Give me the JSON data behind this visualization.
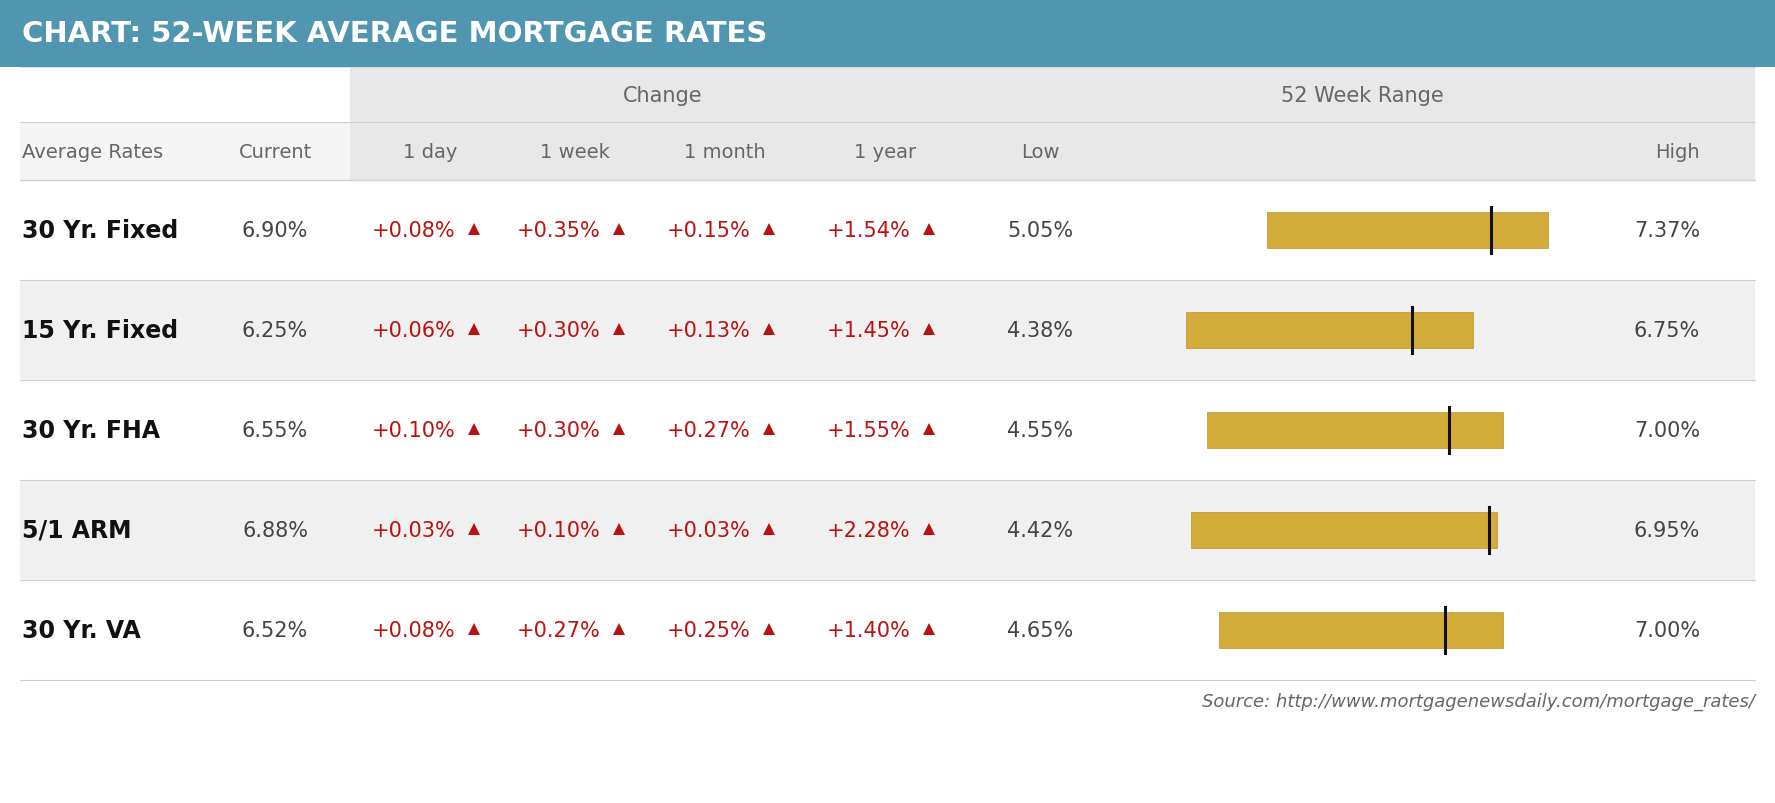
{
  "title": "CHART: 52-WEEK AVERAGE MORTGAGE RATES",
  "title_bg": "#5096b0",
  "title_color": "#ffffff",
  "source": "Source: http://www.mortgagenewsdaily.com/mortgage_rates/",
  "rows": [
    {
      "label": "30 Yr. Fixed",
      "current": "6.90%",
      "day": "+0.08%",
      "week": "+0.35%",
      "month": "+0.15%",
      "year": "+1.54%",
      "low": "5.05%",
      "low_val": 5.05,
      "high": "7.37%",
      "high_val": 7.37,
      "current_val": 6.9
    },
    {
      "label": "15 Yr. Fixed",
      "current": "6.25%",
      "day": "+0.06%",
      "week": "+0.30%",
      "month": "+0.13%",
      "year": "+1.45%",
      "low": "4.38%",
      "low_val": 4.38,
      "high": "6.75%",
      "high_val": 6.75,
      "current_val": 6.25
    },
    {
      "label": "30 Yr. FHA",
      "current": "6.55%",
      "day": "+0.10%",
      "week": "+0.30%",
      "month": "+0.27%",
      "year": "+1.55%",
      "low": "4.55%",
      "low_val": 4.55,
      "high": "7.00%",
      "high_val": 7.0,
      "current_val": 6.55
    },
    {
      "label": "5/1 ARM",
      "current": "6.88%",
      "day": "+0.03%",
      "week": "+0.10%",
      "month": "+0.03%",
      "year": "+2.28%",
      "low": "4.42%",
      "low_val": 4.42,
      "high": "6.95%",
      "high_val": 6.95,
      "current_val": 6.88
    },
    {
      "label": "30 Yr. VA",
      "current": "6.52%",
      "day": "+0.08%",
      "week": "+0.27%",
      "month": "+0.25%",
      "year": "+1.40%",
      "low": "4.65%",
      "low_val": 4.65,
      "high": "7.00%",
      "high_val": 7.0,
      "current_val": 6.52
    }
  ],
  "arrow_color": "#bb1111",
  "bar_color": "#d4ac3a",
  "bar_edge_color": "#b89428",
  "current_line_color": "#111111",
  "header_text_color": "#666666",
  "row_label_color": "#111111",
  "data_text_color": "#444444",
  "bg_color": "#ffffff",
  "alt_row_bg": "#f0f0f0",
  "change_header_bg": "#e8e8e8",
  "range_header_bg": "#e8e8e8",
  "divider_color": "#d0d0d0",
  "title_fontsize": 21,
  "header1_fontsize": 15,
  "header2_fontsize": 14,
  "label_fontsize": 17,
  "data_fontsize": 15,
  "global_rate_min": 4.0,
  "global_rate_max": 7.8
}
